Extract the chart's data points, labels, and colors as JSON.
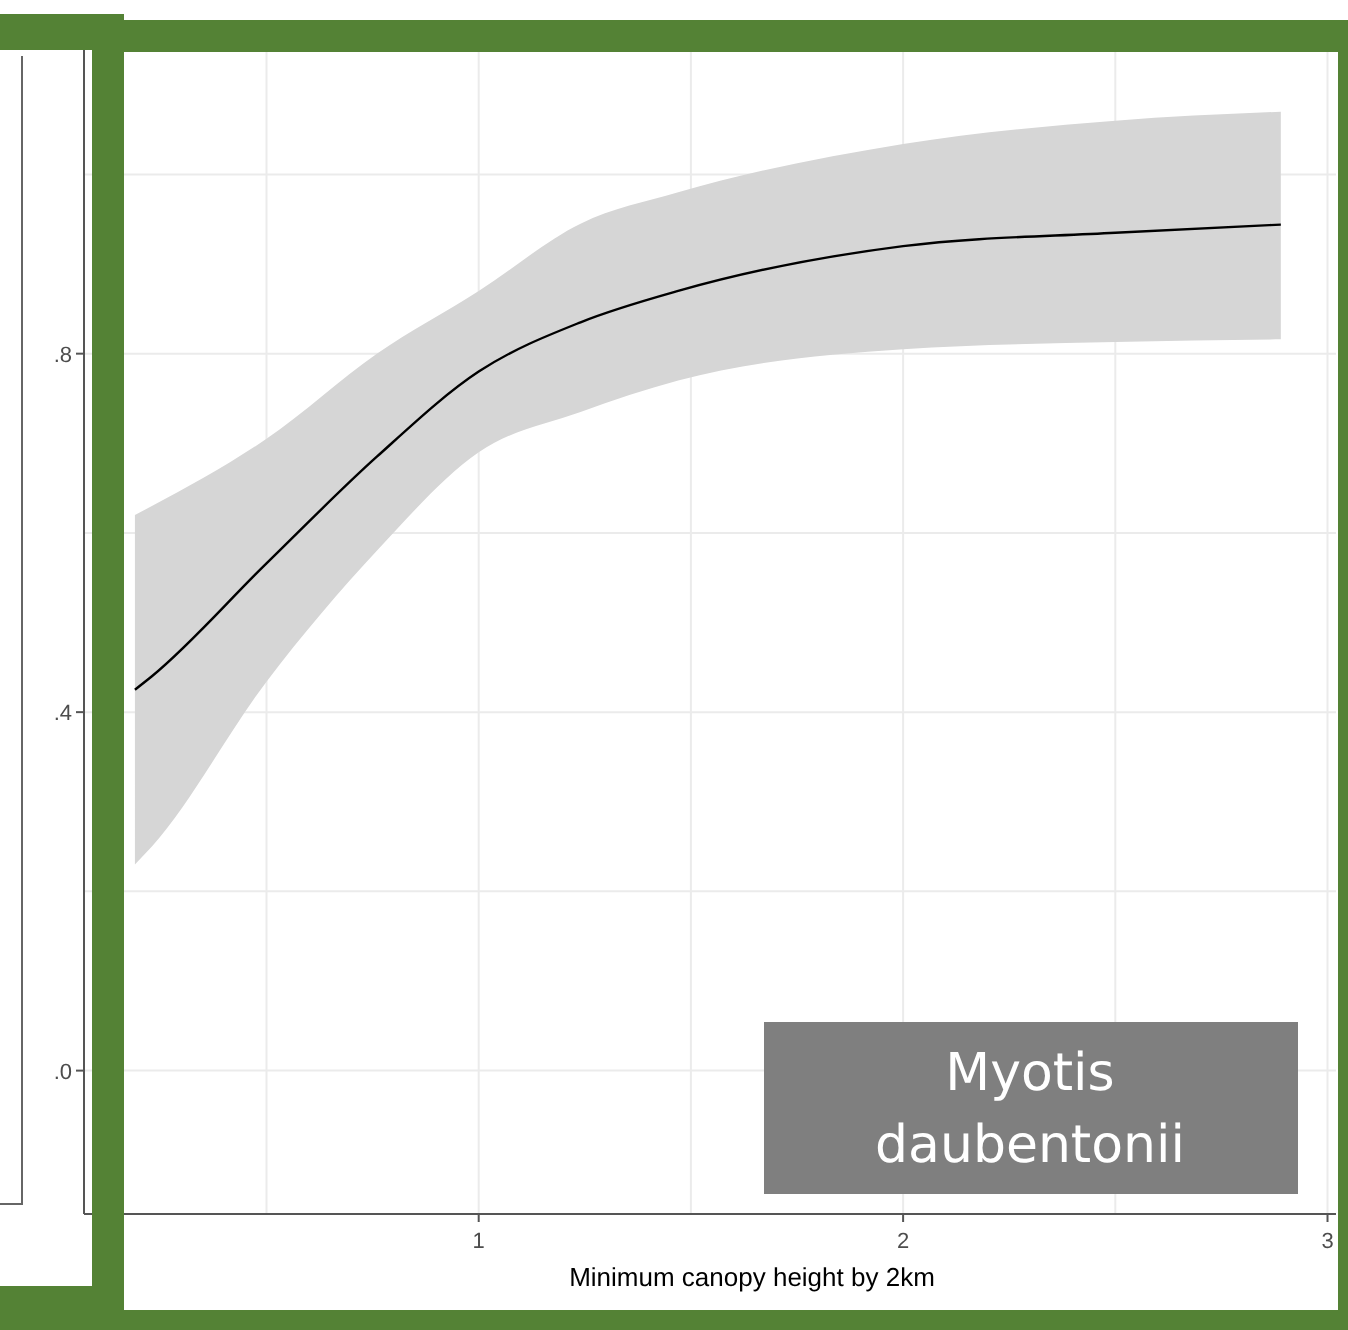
{
  "chart_data": {
    "type": "line",
    "xlabel": "Minimum canopy height by 2km",
    "x": [
      0.19,
      0.23,
      0.5,
      0.76,
      1.0,
      1.24,
      1.47,
      2.0,
      2.5,
      2.89
    ],
    "series": [
      {
        "color": "#000000",
        "values": [
          0.425,
          0.44,
          0.566,
          0.685,
          0.78,
          0.835,
          0.87,
          0.92,
          0.935,
          0.944
        ],
        "lower": [
          0.23,
          0.25,
          0.434,
          0.58,
          0.69,
          0.735,
          0.77,
          0.805,
          0.813,
          0.816
        ],
        "upper": [
          0.62,
          0.63,
          0.705,
          0.8,
          0.87,
          0.945,
          0.98,
          1.034,
          1.06,
          1.07
        ]
      }
    ],
    "xlim": [
      0.07,
      3.02
    ],
    "ylim": [
      -0.16,
      1.15
    ],
    "xticks": [
      1,
      2,
      3
    ],
    "yticks": [
      {
        "value": 0,
        "label": ".0"
      },
      {
        "value": 0.4,
        "label": ".4"
      },
      {
        "value": 0.8,
        "label": ".8"
      }
    ],
    "grid": true,
    "marker": "none",
    "line_style": "solid",
    "annotations": [
      "Myotis daubentonii"
    ]
  }
}
